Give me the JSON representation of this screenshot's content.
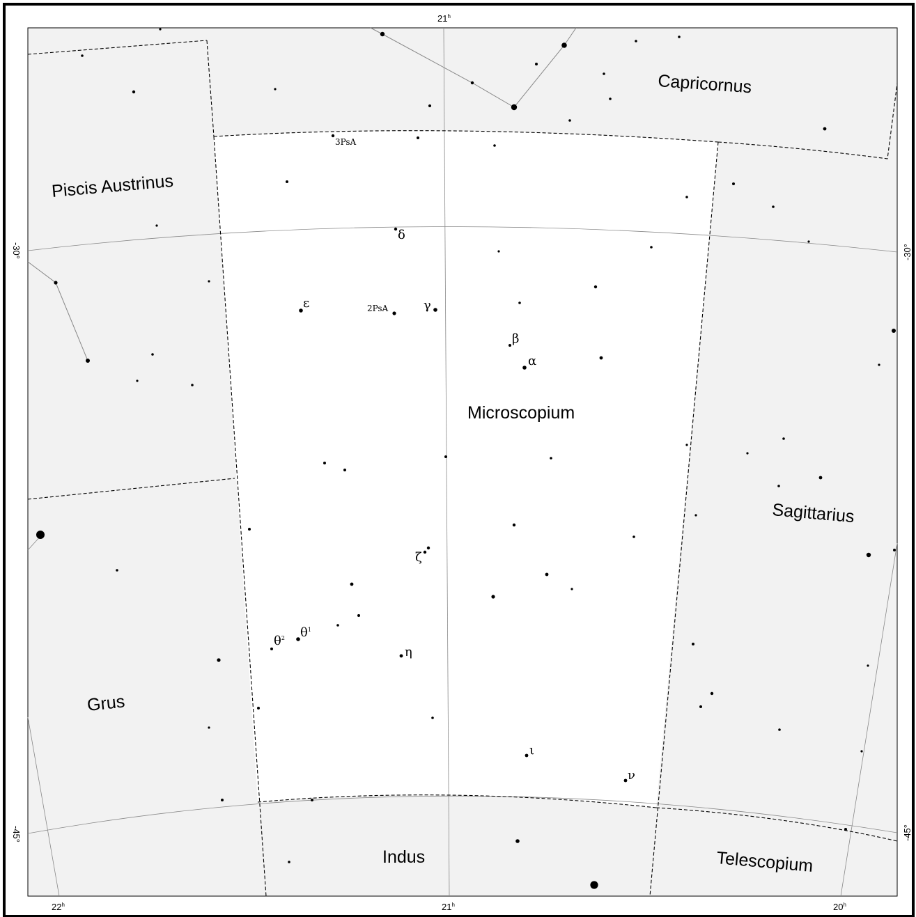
{
  "map": {
    "background_color": "#f2f2f2",
    "highlight_color": "#ffffff",
    "frame_color": "#000000",
    "grid_color": "#888888"
  },
  "constellations": {
    "microscopium": "Microscopium",
    "capricornus": "Capricornus",
    "piscis_austrinus": "Piscis Austrinus",
    "sagittarius": "Sagittarius",
    "grus": "Grus",
    "indus": "Indus",
    "telescopium": "Telescopium"
  },
  "ra_labels": {
    "top_21": "21",
    "bottom_22": "22",
    "bottom_21": "21",
    "bottom_20": "20",
    "hour_sup": "h"
  },
  "dec_labels": {
    "left_m30": "-30°",
    "right_m30": "-30°",
    "left_m45": "-45°",
    "right_m45": "-45°"
  },
  "star_labels": {
    "delta": "δ",
    "epsilon": "ε",
    "gamma": "γ",
    "beta": "β",
    "alpha": "α",
    "zeta": "ζ",
    "eta": "η",
    "theta1": "θ",
    "theta1_sup": "1",
    "theta2": "θ",
    "theta2_sup": "2",
    "iota": "ι",
    "nu": "ν",
    "cat_2psa": "2PsA",
    "cat_3psa": "3PsA"
  },
  "stars": [
    {
      "name": "star-mic-alpha",
      "mag": 4.9
    },
    {
      "name": "star-mic-gamma",
      "mag": 4.7
    },
    {
      "name": "star-mic-epsilon",
      "mag": 4.7
    },
    {
      "name": "star-mic-theta1",
      "mag": 4.8
    }
  ]
}
